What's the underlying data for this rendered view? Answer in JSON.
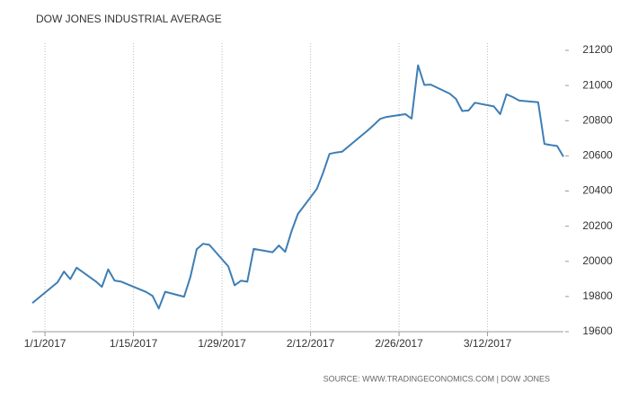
{
  "chart_data": {
    "type": "line",
    "title": "DOW JONES INDUSTRIAL AVERAGE",
    "source": "SOURCE: WWW.TRADINGECONOMICS.COM | DOW JONES",
    "x": [
      "12/30/2016",
      "1/3/2017",
      "1/4/2017",
      "1/5/2017",
      "1/6/2017",
      "1/9/2017",
      "1/10/2017",
      "1/11/2017",
      "1/12/2017",
      "1/13/2017",
      "1/17/2017",
      "1/18/2017",
      "1/19/2017",
      "1/20/2017",
      "1/23/2017",
      "1/24/2017",
      "1/25/2017",
      "1/26/2017",
      "1/27/2017",
      "1/30/2017",
      "1/31/2017",
      "2/1/2017",
      "2/2/2017",
      "2/3/2017",
      "2/6/2017",
      "2/7/2017",
      "2/8/2017",
      "2/9/2017",
      "2/10/2017",
      "2/13/2017",
      "2/14/2017",
      "2/15/2017",
      "2/16/2017",
      "2/17/2017",
      "2/21/2017",
      "2/22/2017",
      "2/23/2017",
      "2/24/2017",
      "2/27/2017",
      "2/28/2017",
      "3/1/2017",
      "3/2/2017",
      "3/3/2017",
      "3/6/2017",
      "3/7/2017",
      "3/8/2017",
      "3/9/2017",
      "3/10/2017",
      "3/13/2017",
      "3/14/2017",
      "3/15/2017",
      "3/16/2017",
      "3/17/2017",
      "3/20/2017",
      "3/21/2017",
      "3/22/2017",
      "3/23/2017",
      "3/24/2017"
    ],
    "series": [
      {
        "name": "Dow Jones",
        "color": "#3d7eb5",
        "values": [
          19763,
          19881,
          19942,
          19899,
          19964,
          19887,
          19855,
          19954,
          19891,
          19885,
          19826,
          19804,
          19732,
          19827,
          19799,
          19912,
          20069,
          20100,
          20094,
          19971,
          19864,
          19890,
          19884,
          20071,
          20052,
          20090,
          20054,
          20172,
          20269,
          20412,
          20504,
          20611,
          20619,
          20624,
          20743,
          20775,
          20810,
          20821,
          20837,
          20812,
          21115,
          21003,
          21005,
          20954,
          20924,
          20855,
          20858,
          20902,
          20881,
          20837,
          20950,
          20934,
          20914,
          20905,
          20668,
          20661,
          20656,
          20596
        ]
      }
    ],
    "xlim": [
      "12/30/2016",
      "3/24/2017"
    ],
    "xticks": [
      "1/1/2017",
      "1/15/2017",
      "1/29/2017",
      "2/12/2017",
      "2/26/2017",
      "3/12/2017"
    ],
    "ylim": [
      19600,
      21200
    ],
    "yticks": [
      19600,
      19800,
      20000,
      20200,
      20400,
      20600,
      20800,
      21000,
      21200
    ],
    "grid": true
  }
}
